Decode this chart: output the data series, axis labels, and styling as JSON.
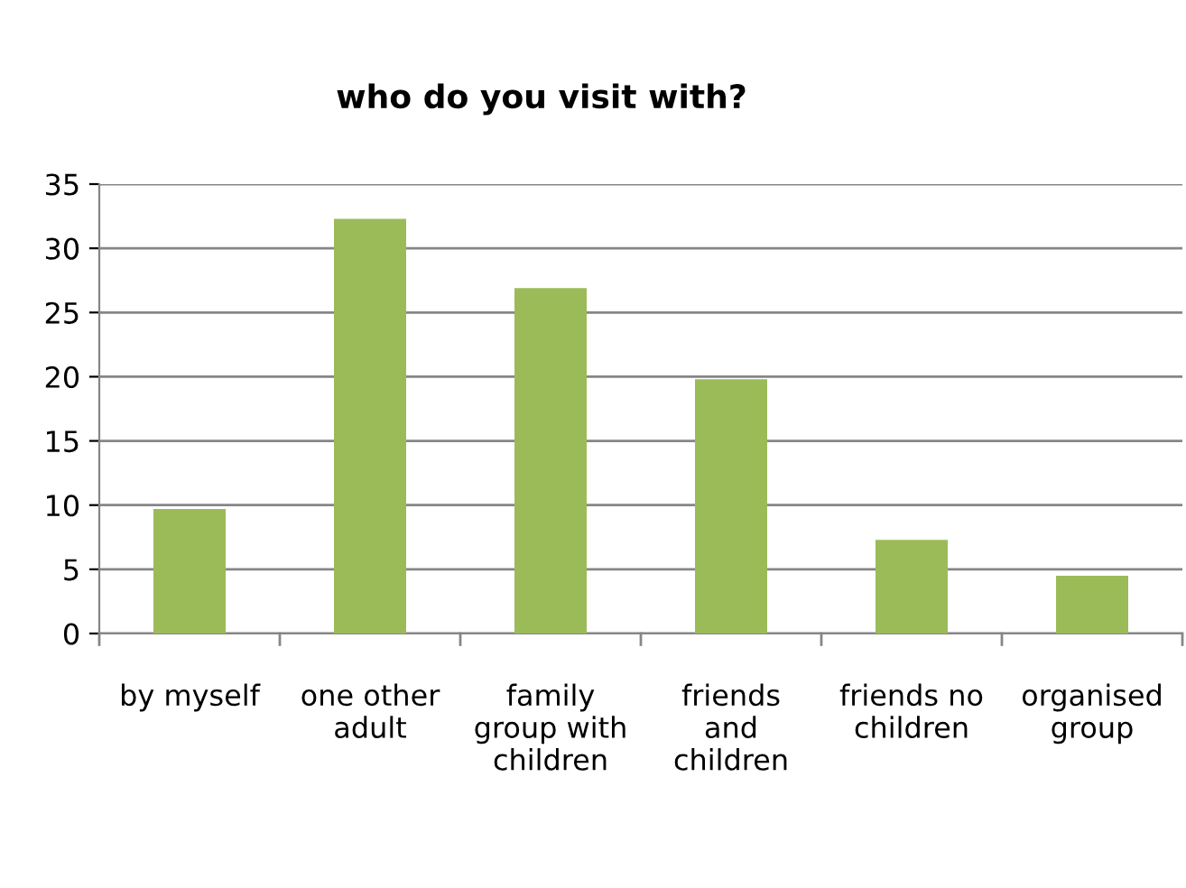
{
  "chart_data": {
    "type": "bar",
    "title": "who do you visit with?",
    "categories": [
      "by myself",
      "one other\nadult",
      "family\ngroup with\nchildren",
      "friends\nand\nchildren",
      "friends no\nchildren",
      "organised\ngroup"
    ],
    "values": [
      9.7,
      32.3,
      26.9,
      19.8,
      7.3,
      4.5
    ],
    "color": "#9bbb59",
    "ylim": [
      0,
      35
    ],
    "yticks": [
      0,
      5,
      10,
      15,
      20,
      25,
      30,
      35
    ],
    "grid": "y",
    "legend": false
  }
}
